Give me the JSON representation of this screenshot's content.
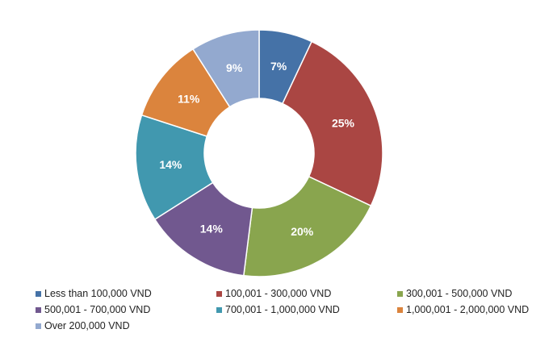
{
  "chart_data": {
    "type": "pie",
    "donut": true,
    "title": "",
    "legend_position": "bottom",
    "series": [
      {
        "name": "Less than 100,000 VND",
        "value": 7,
        "label": "7%",
        "color": "#4572A7"
      },
      {
        "name": "100,001 - 300,000 VND",
        "value": 25,
        "label": "25%",
        "color": "#AA4643"
      },
      {
        "name": "300,001 - 500,000 VND",
        "value": 20,
        "label": "20%",
        "color": "#89A54E"
      },
      {
        "name": "500,001 - 700,000 VND",
        "value": 14,
        "label": "14%",
        "color": "#71588F"
      },
      {
        "name": "700,001 - 1,000,000 VND",
        "value": 14,
        "label": "14%",
        "color": "#4198AF"
      },
      {
        "name": "1,000,001 - 2,000,000 VND",
        "value": 11,
        "label": "11%",
        "color": "#DB843D"
      },
      {
        "name": "Over 200,000 VND",
        "value": 9,
        "label": "9%",
        "color": "#93A9CF"
      }
    ]
  }
}
